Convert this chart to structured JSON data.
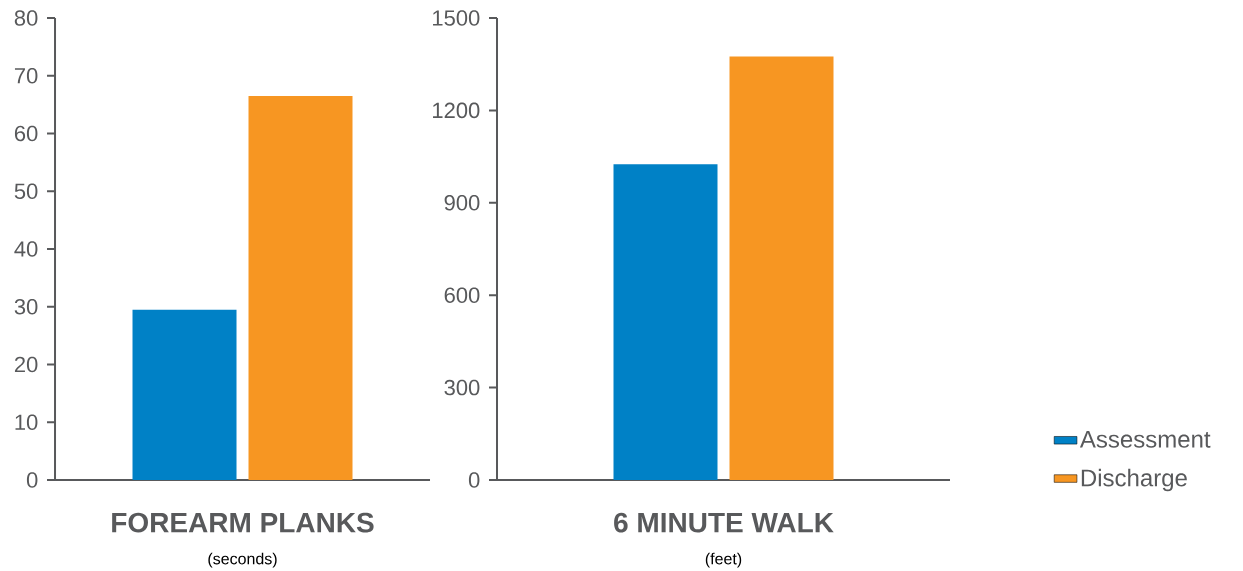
{
  "chart_data": [
    {
      "type": "bar",
      "xlabel": "FOREARM PLANKS",
      "annotations": [
        "(seconds)"
      ],
      "categories": [
        null
      ],
      "series": [
        {
          "color": "#0081c6",
          "values": [
            29.5
          ]
        },
        {
          "color": "#f79622",
          "values": [
            66.5
          ]
        }
      ],
      "ylim": [
        0,
        80
      ],
      "yticks": [
        0,
        10,
        20,
        30,
        40,
        50,
        60,
        70,
        80
      ]
    },
    {
      "type": "bar",
      "xlabel": "6 MINUTE WALK",
      "annotations": [
        "(feet)"
      ],
      "categories": [
        null
      ],
      "series": [
        {
          "name": "Assessment",
          "color": "#0081c6",
          "values": [
            1025
          ]
        },
        {
          "name": "Discharge",
          "color": "#f79622",
          "values": [
            1375
          ]
        }
      ],
      "ylim": [
        0,
        1500
      ],
      "yticks": [
        0,
        300,
        600,
        900,
        1200,
        1500
      ],
      "legend": "right"
    }
  ]
}
